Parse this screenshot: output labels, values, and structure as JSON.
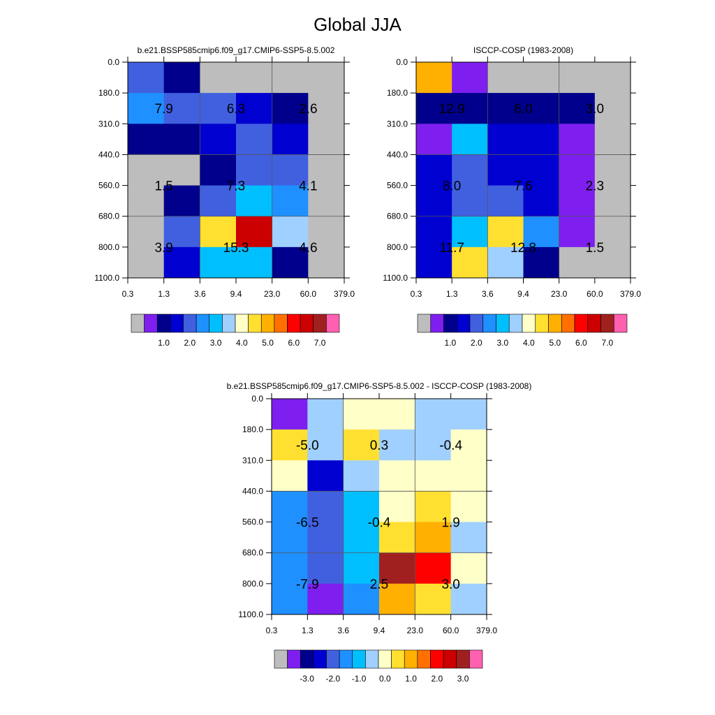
{
  "figure_title": "Global JJA",
  "colors": {
    "missing": "#bdbdbd",
    "frame": "#000000",
    "grid": "#555555"
  },
  "chart_data": [
    {
      "type": "heatmap",
      "title": "b.e21.BSSP585cmip6.f09_g17.CMIP6-SSP5-8.5.002",
      "x_tick_labels": [
        "0.3",
        "1.3",
        "3.6",
        "9.4",
        "23.0",
        "60.0",
        "379.0"
      ],
      "y_tick_labels": [
        "0.0",
        "180.0",
        "310.0",
        "440.0",
        "560.0",
        "680.0",
        "800.0",
        "1100.0"
      ],
      "colormap": [
        "#7e1ff0",
        "#00008c",
        "#0000d0",
        "#4060e0",
        "#1e90ff",
        "#00bfff",
        "#a0d0ff",
        "#ffffc8",
        "#ffe030",
        "#ffb000",
        "#ff7000",
        "#ff0000",
        "#cc0000",
        "#a02020",
        "#ff60b0"
      ],
      "colorbar_labels": [
        "1.0",
        "2.0",
        "3.0",
        "4.0",
        "5.0",
        "6.0",
        "7.0"
      ],
      "cells": [
        [
          3,
          1,
          -1,
          -1,
          -1,
          -1
        ],
        [
          4,
          3,
          3,
          2,
          1,
          -1
        ],
        [
          1,
          1,
          2,
          3,
          2,
          -1
        ],
        [
          -1,
          -1,
          1,
          3,
          3,
          -1
        ],
        [
          -1,
          1,
          3,
          5,
          4,
          -1
        ],
        [
          -1,
          3,
          8,
          12,
          6,
          -1
        ],
        [
          -1,
          2,
          5,
          5,
          1,
          -1
        ]
      ],
      "value_labels": [
        {
          "row": 0,
          "col": 0,
          "text": "7.9"
        },
        {
          "row": 0,
          "col": 1,
          "text": "6.3"
        },
        {
          "row": 0,
          "col": 2,
          "text": "2.6"
        },
        {
          "row": 1,
          "col": 0,
          "text": "1.5"
        },
        {
          "row": 1,
          "col": 1,
          "text": "7.3"
        },
        {
          "row": 1,
          "col": 2,
          "text": "4.1"
        },
        {
          "row": 2,
          "col": 0,
          "text": "3.9"
        },
        {
          "row": 2,
          "col": 1,
          "text": "15.3"
        },
        {
          "row": 2,
          "col": 2,
          "text": "4.6"
        }
      ]
    },
    {
      "type": "heatmap",
      "title": "ISCCP-COSP (1983-2008)",
      "x_tick_labels": [
        "0.3",
        "1.3",
        "3.6",
        "9.4",
        "23.0",
        "60.0",
        "379.0"
      ],
      "y_tick_labels": [
        "0.0",
        "180.0",
        "310.0",
        "440.0",
        "560.0",
        "680.0",
        "800.0",
        "1100.0"
      ],
      "colormap": [
        "#7e1ff0",
        "#00008c",
        "#0000d0",
        "#4060e0",
        "#1e90ff",
        "#00bfff",
        "#a0d0ff",
        "#ffffc8",
        "#ffe030",
        "#ffb000",
        "#ff7000",
        "#ff0000",
        "#cc0000",
        "#a02020",
        "#ff60b0"
      ],
      "colorbar_labels": [
        "1.0",
        "2.0",
        "3.0",
        "4.0",
        "5.0",
        "6.0",
        "7.0"
      ],
      "cells": [
        [
          9,
          0,
          -1,
          -1,
          -1,
          -1
        ],
        [
          1,
          1,
          1,
          1,
          1,
          -1
        ],
        [
          0,
          5,
          2,
          2,
          0,
          -1
        ],
        [
          2,
          3,
          2,
          2,
          0,
          -1
        ],
        [
          2,
          3,
          3,
          2,
          0,
          -1
        ],
        [
          2,
          5,
          8,
          4,
          0,
          -1
        ],
        [
          2,
          8,
          6,
          1,
          -1,
          -1
        ]
      ],
      "value_labels": [
        {
          "row": 0,
          "col": 0,
          "text": "12.9"
        },
        {
          "row": 0,
          "col": 1,
          "text": "6.0"
        },
        {
          "row": 0,
          "col": 2,
          "text": "3.0"
        },
        {
          "row": 1,
          "col": 0,
          "text": "8.0"
        },
        {
          "row": 1,
          "col": 1,
          "text": "7.6"
        },
        {
          "row": 1,
          "col": 2,
          "text": "2.3"
        },
        {
          "row": 2,
          "col": 0,
          "text": "11.7"
        },
        {
          "row": 2,
          "col": 1,
          "text": "12.8"
        },
        {
          "row": 2,
          "col": 2,
          "text": "1.5"
        }
      ]
    },
    {
      "type": "heatmap",
      "title": "b.e21.BSSP585cmip6.f09_g17.CMIP6-SSP5-8.5.002 - ISCCP-COSP (1983-2008)",
      "x_tick_labels": [
        "0.3",
        "1.3",
        "3.6",
        "9.4",
        "23.0",
        "60.0",
        "379.0"
      ],
      "y_tick_labels": [
        "0.0",
        "180.0",
        "310.0",
        "440.0",
        "560.0",
        "680.0",
        "800.0",
        "1100.0"
      ],
      "colormap": [
        "#7e1ff0",
        "#00008c",
        "#0000d0",
        "#4060e0",
        "#1e90ff",
        "#00bfff",
        "#a0d0ff",
        "#ffffc8",
        "#ffe030",
        "#ffb000",
        "#ff7000",
        "#ff0000",
        "#cc0000",
        "#a02020",
        "#ff60b0"
      ],
      "colorbar_labels": [
        "-3.0",
        "-2.0",
        "-1.0",
        "0.0",
        "1.0",
        "2.0",
        "3.0"
      ],
      "cells": [
        [
          0,
          6,
          7,
          7,
          6,
          6
        ],
        [
          8,
          6,
          8,
          6,
          6,
          7
        ],
        [
          7,
          2,
          6,
          7,
          7,
          7
        ],
        [
          4,
          3,
          5,
          7,
          8,
          7
        ],
        [
          4,
          3,
          5,
          8,
          9,
          6
        ],
        [
          4,
          3,
          5,
          13,
          11,
          7
        ],
        [
          4,
          0,
          4,
          9,
          8,
          6
        ]
      ],
      "value_labels": [
        {
          "row": 0,
          "col": 0,
          "text": "-5.0"
        },
        {
          "row": 0,
          "col": 1,
          "text": "0.3"
        },
        {
          "row": 0,
          "col": 2,
          "text": "-0.4"
        },
        {
          "row": 1,
          "col": 0,
          "text": "-6.5"
        },
        {
          "row": 1,
          "col": 1,
          "text": "-0.4"
        },
        {
          "row": 1,
          "col": 2,
          "text": "1.9"
        },
        {
          "row": 2,
          "col": 0,
          "text": "-7.9"
        },
        {
          "row": 2,
          "col": 1,
          "text": "2.5"
        },
        {
          "row": 2,
          "col": 2,
          "text": "3.0"
        }
      ]
    }
  ]
}
